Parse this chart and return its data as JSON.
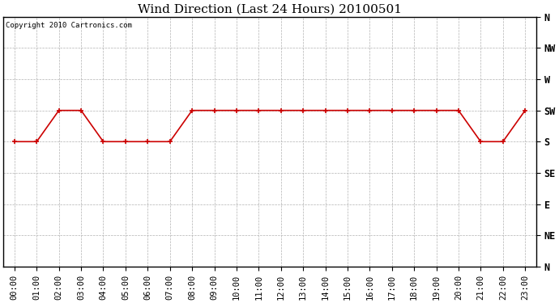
{
  "title": "Wind Direction (Last 24 Hours) 20100501",
  "copyright_text": "Copyright 2010 Cartronics.com",
  "hours": [
    0,
    1,
    2,
    3,
    4,
    5,
    6,
    7,
    8,
    9,
    10,
    11,
    12,
    13,
    14,
    15,
    16,
    17,
    18,
    19,
    20,
    21,
    22,
    23
  ],
  "wind_values": [
    180,
    180,
    225,
    225,
    180,
    180,
    180,
    180,
    225,
    225,
    225,
    225,
    225,
    225,
    225,
    225,
    225,
    225,
    225,
    225,
    225,
    180,
    180,
    225
  ],
  "ytick_labels": [
    "N",
    "NW",
    "W",
    "SW",
    "S",
    "SE",
    "E",
    "NE",
    "N"
  ],
  "ytick_values": [
    360,
    315,
    270,
    225,
    180,
    135,
    90,
    45,
    0
  ],
  "line_color": "#cc0000",
  "marker": "+",
  "bg_color": "#ffffff",
  "plot_bg_color": "#ffffff",
  "grid_color": "#aaaaaa",
  "title_fontsize": 11,
  "tick_fontsize": 7.5,
  "copyright_fontsize": 6.5
}
